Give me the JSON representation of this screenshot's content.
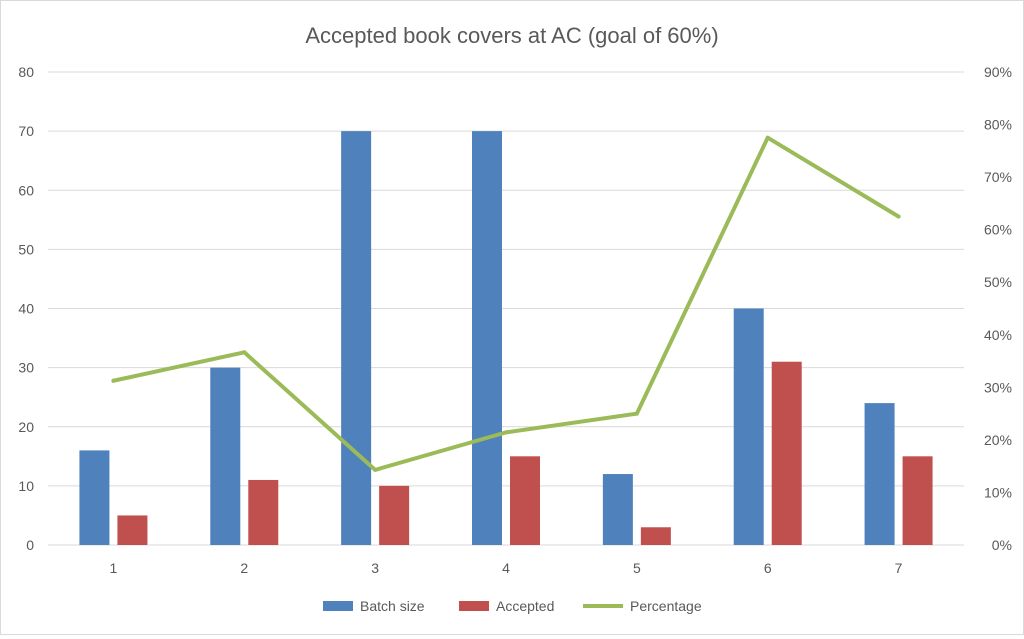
{
  "chart_data": {
    "type": "bar",
    "title": "Accepted book covers at AC (goal of 60%)",
    "categories": [
      "1",
      "2",
      "3",
      "4",
      "5",
      "6",
      "7"
    ],
    "series": [
      {
        "name": "Batch size",
        "type": "bar",
        "axis": "left",
        "values": [
          16,
          30,
          70,
          70,
          12,
          40,
          24
        ]
      },
      {
        "name": "Accepted",
        "type": "bar",
        "axis": "left",
        "values": [
          5,
          11,
          10,
          15,
          3,
          31,
          15
        ]
      },
      {
        "name": "Percentage",
        "type": "line",
        "axis": "right",
        "values": [
          31.25,
          36.67,
          14.29,
          21.43,
          25.0,
          77.5,
          62.5
        ]
      }
    ],
    "y_left": {
      "min": 0,
      "max": 80,
      "step": 10,
      "ticks": [
        "0",
        "10",
        "20",
        "30",
        "40",
        "50",
        "60",
        "70",
        "80"
      ]
    },
    "y_right": {
      "min": 0,
      "max": 90,
      "step": 10,
      "ticks": [
        "0%",
        "10%",
        "20%",
        "30%",
        "40%",
        "50%",
        "60%",
        "70%",
        "80%",
        "90%"
      ]
    },
    "grid": true,
    "legend_position": "bottom",
    "colors": {
      "Batch size": "#4F81BD",
      "Accepted": "#C0504D",
      "Percentage": "#9BBB59",
      "grid": "#d9d9d9",
      "text": "#595959"
    }
  }
}
